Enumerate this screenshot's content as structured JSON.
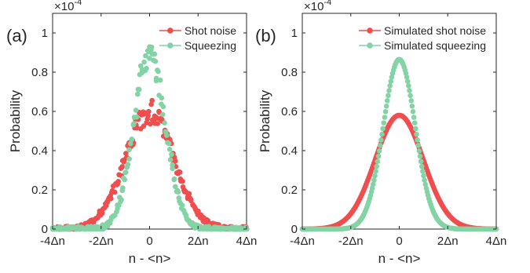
{
  "chart_data": [
    {
      "type": "scatter",
      "panel_label": "(a)",
      "xlabel": "n - <n>",
      "ylabel": "Probability",
      "y_exponent": "×10^-4",
      "xlim": [
        -4,
        4
      ],
      "ylim": [
        0,
        1.1
      ],
      "x_unit": "Δn",
      "x_ticks": [
        -4,
        -2,
        0,
        2,
        4
      ],
      "x_tick_labels": [
        "-4Δn",
        "-2Δn",
        "0",
        "2Δn",
        "4Δn"
      ],
      "y_ticks": [
        0,
        0.2,
        0.4,
        0.6,
        0.8,
        1
      ],
      "y_tick_labels": [
        "0",
        "0.2",
        "0.4",
        "0.6",
        "0.8",
        "1"
      ],
      "legend_position": "top-right",
      "series": [
        {
          "name": "Shot noise",
          "color": "#f04e4e",
          "peak": 0.6,
          "sigma": 1.0,
          "noisy": true
        },
        {
          "name": "Squeezing",
          "color": "#83d3a5",
          "peak": 0.89,
          "sigma": 0.65,
          "noisy": true
        }
      ]
    },
    {
      "type": "scatter",
      "panel_label": "(b)",
      "xlabel": "n - <n>",
      "ylabel": "Probability",
      "y_exponent": "×10^-4",
      "xlim": [
        -4,
        4
      ],
      "ylim": [
        0,
        1.1
      ],
      "x_unit": "Δn",
      "x_ticks": [
        -4,
        -2,
        0,
        2,
        4
      ],
      "x_tick_labels": [
        "-4Δn",
        "-2Δn",
        "0",
        "2Δn",
        "4Δn"
      ],
      "y_ticks": [
        0,
        0.2,
        0.4,
        0.6,
        0.8,
        1
      ],
      "y_tick_labels": [
        "0",
        "0.2",
        "0.4",
        "0.6",
        "0.8",
        "1"
      ],
      "legend_position": "top-right",
      "series": [
        {
          "name": "Simulated shot noise",
          "color": "#f04e4e",
          "peak": 0.58,
          "sigma": 1.0,
          "noisy": false
        },
        {
          "name": "Simulated squeezing",
          "color": "#83d3a5",
          "peak": 0.865,
          "sigma": 0.66,
          "noisy": false
        }
      ]
    }
  ]
}
